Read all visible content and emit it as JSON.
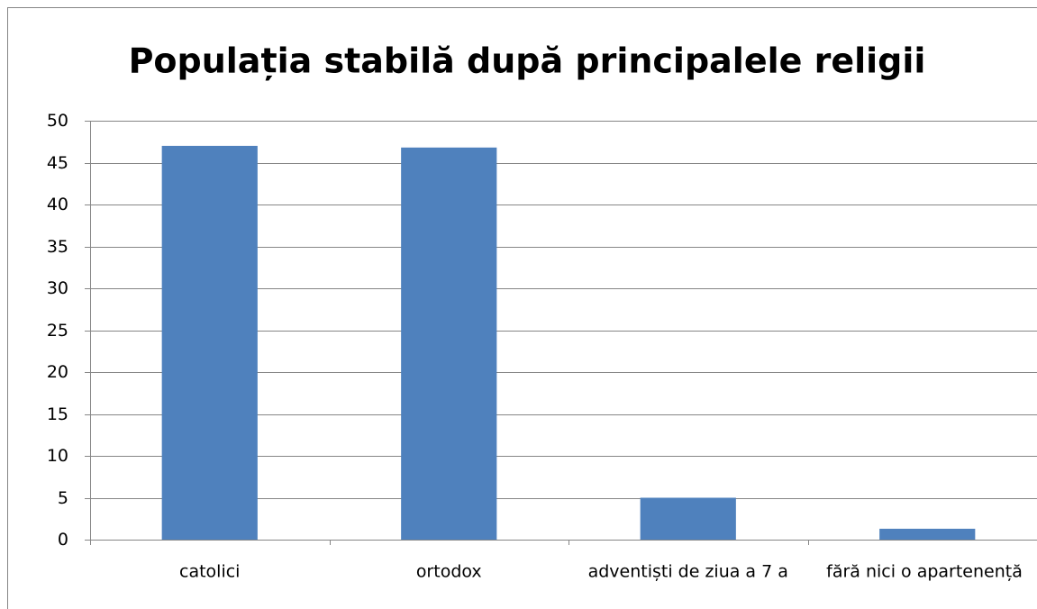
{
  "chart_data": {
    "type": "bar",
    "title": "Populația stabilă după principalele religii",
    "categories": [
      "catolici",
      "ortodox",
      "adventiști de ziua a 7 a",
      "fără nici o apartenență"
    ],
    "values": [
      47.0,
      46.8,
      5.0,
      1.3
    ],
    "color": "#4f81bd",
    "ylim": [
      0,
      50
    ],
    "yticks": [
      0,
      5,
      10,
      15,
      20,
      25,
      30,
      35,
      40,
      45,
      50
    ],
    "grid": true
  }
}
